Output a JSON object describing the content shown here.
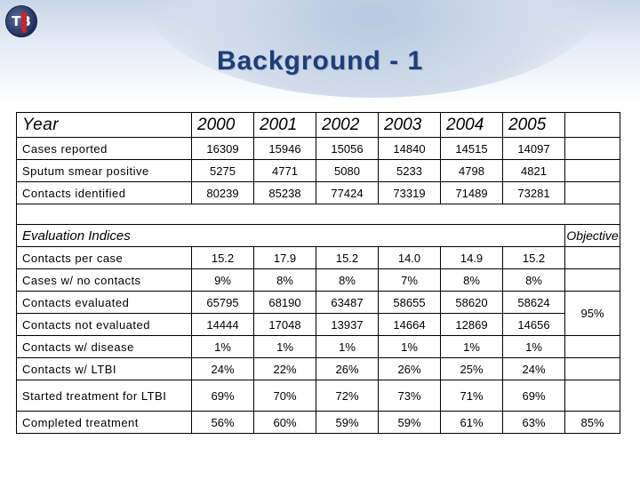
{
  "title": "Background - 1",
  "header_row": {
    "label": "Year",
    "years": [
      "2000",
      "2001",
      "2002",
      "2003",
      "2004",
      "2005"
    ]
  },
  "top_rows": [
    {
      "label": "Cases reported",
      "values": [
        "16309",
        "15946",
        "15056",
        "14840",
        "14515",
        "14097"
      ]
    },
    {
      "label": "Sputum smear positive",
      "values": [
        "5275",
        "4771",
        "5080",
        "5233",
        "4798",
        "4821"
      ]
    },
    {
      "label": "Contacts identified",
      "values": [
        "80239",
        "85238",
        "77424",
        "73319",
        "71489",
        "73281"
      ]
    }
  ],
  "section": {
    "label": "Evaluation Indices",
    "objective_label": "Objective"
  },
  "eval_rows": [
    {
      "label": "Contacts per case",
      "values": [
        "15.2",
        "17.9",
        "15.2",
        "14.0",
        "14.9",
        "15.2"
      ]
    },
    {
      "label": "Cases w/ no contacts",
      "values": [
        "9%",
        "8%",
        "8%",
        "7%",
        "8%",
        "8%"
      ]
    },
    {
      "label": "Contacts evaluated",
      "values": [
        "65795",
        "68190",
        "63487",
        "58655",
        "58620",
        "58624"
      ]
    },
    {
      "label": "Contacts not evaluated",
      "values": [
        "14444",
        "17048",
        "13937",
        "14664",
        "12869",
        "14656"
      ]
    },
    {
      "label": "Contacts w/ disease",
      "values": [
        "1%",
        "1%",
        "1%",
        "1%",
        "1%",
        "1%"
      ]
    },
    {
      "label": "Contacts w/ LTBI",
      "values": [
        "24%",
        "22%",
        "26%",
        "26%",
        "25%",
        "24%"
      ]
    },
    {
      "label": "Started treatment for LTBI",
      "values": [
        "69%",
        "70%",
        "72%",
        "73%",
        "71%",
        "69%"
      ]
    },
    {
      "label": "Completed treatment",
      "values": [
        "56%",
        "60%",
        "59%",
        "59%",
        "61%",
        "63%"
      ],
      "objective": "85%"
    }
  ],
  "objective_evaluated": "95%",
  "colors": {
    "title": "#1f3e78",
    "highlight": "#c0140c",
    "logo_red": "#c2262e"
  }
}
